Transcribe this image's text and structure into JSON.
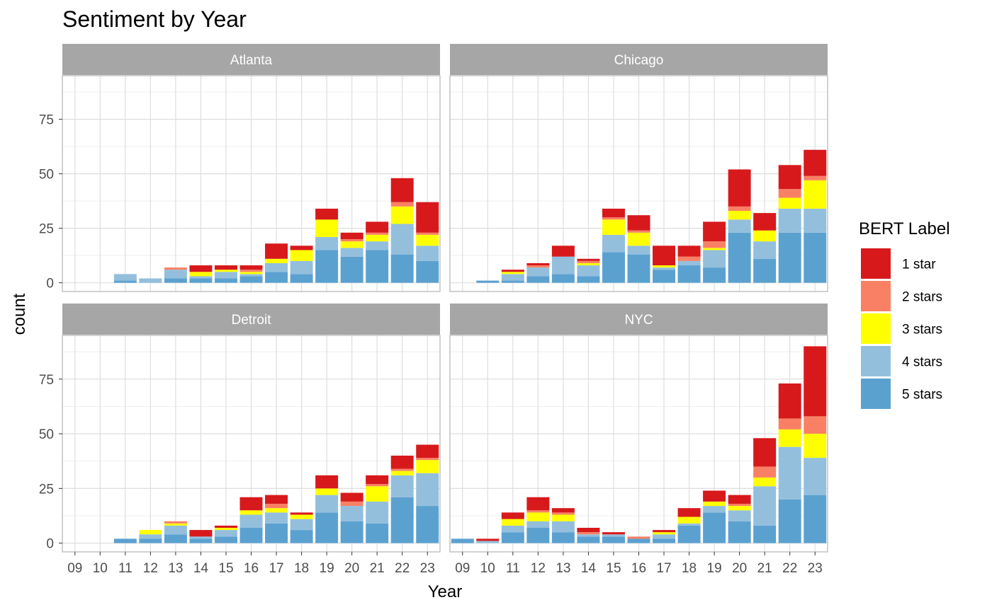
{
  "chart_data": {
    "type": "bar",
    "stacked": true,
    "title": "Sentiment by Year",
    "xlabel": "Year",
    "ylabel": "count",
    "ylim": [
      -4,
      95
    ],
    "yticks": [
      0,
      25,
      50,
      75
    ],
    "grid": true,
    "legend_position": "right",
    "legend_title": "BERT Label",
    "categories": [
      "09",
      "10",
      "11",
      "12",
      "13",
      "14",
      "15",
      "16",
      "17",
      "18",
      "19",
      "20",
      "21",
      "22",
      "23"
    ],
    "series": [
      {
        "name": "5 stars",
        "color": "#5BA1D0"
      },
      {
        "name": "4 stars",
        "color": "#93BFDD"
      },
      {
        "name": "3 stars",
        "color": "#FFFF00"
      },
      {
        "name": "2 stars",
        "color": "#FA8065"
      },
      {
        "name": "1 star",
        "color": "#D7191C"
      }
    ],
    "legend_order": [
      "1 star",
      "2 stars",
      "3 stars",
      "4 stars",
      "5 stars"
    ],
    "facets": [
      {
        "name": "Atlanta",
        "values": {
          "5 stars": [
            0,
            0,
            1,
            0,
            2,
            2,
            2,
            3,
            5,
            4,
            15,
            12,
            15,
            13,
            10
          ],
          "4 stars": [
            0,
            0,
            3,
            2,
            4,
            1,
            3,
            1,
            4,
            6,
            6,
            4,
            4,
            14,
            7
          ],
          "3 stars": [
            0,
            0,
            0,
            0,
            0,
            2,
            1,
            1,
            2,
            5,
            8,
            3,
            3,
            8,
            5
          ],
          "2 stars": [
            0,
            0,
            0,
            0,
            1,
            0,
            0,
            1,
            0,
            0,
            0,
            1,
            1,
            2,
            1
          ],
          "1 star": [
            0,
            0,
            0,
            0,
            0,
            3,
            2,
            2,
            7,
            2,
            5,
            3,
            5,
            11,
            14
          ]
        }
      },
      {
        "name": "Chicago",
        "values": {
          "5 stars": [
            0,
            1,
            1,
            3,
            4,
            3,
            14,
            13,
            6,
            8,
            7,
            23,
            11,
            23,
            23
          ],
          "4 stars": [
            0,
            0,
            3,
            4,
            8,
            5,
            8,
            4,
            1,
            2,
            8,
            6,
            8,
            11,
            11
          ],
          "3 stars": [
            0,
            0,
            1,
            0,
            0,
            1,
            7,
            6,
            1,
            0,
            1,
            4,
            5,
            5,
            13
          ],
          "2 stars": [
            0,
            0,
            0,
            1,
            0,
            1,
            1,
            1,
            0,
            2,
            3,
            2,
            0,
            4,
            2
          ],
          "1 star": [
            0,
            0,
            1,
            1,
            5,
            1,
            4,
            7,
            9,
            5,
            9,
            17,
            8,
            11,
            12
          ]
        }
      },
      {
        "name": "Detroit",
        "values": {
          "5 stars": [
            0,
            0,
            2,
            2,
            4,
            2,
            3,
            7,
            9,
            6,
            14,
            10,
            9,
            21,
            17
          ],
          "4 stars": [
            0,
            0,
            0,
            2,
            4,
            1,
            3,
            6,
            5,
            5,
            8,
            7,
            10,
            10,
            15
          ],
          "3 stars": [
            0,
            0,
            0,
            2,
            1,
            0,
            1,
            2,
            2,
            2,
            3,
            0,
            7,
            2,
            6
          ],
          "2 stars": [
            0,
            0,
            0,
            0,
            1,
            0,
            0,
            0,
            2,
            0,
            0,
            2,
            1,
            1,
            1
          ],
          "1 star": [
            0,
            0,
            0,
            0,
            0,
            3,
            1,
            6,
            4,
            1,
            6,
            4,
            4,
            6,
            6
          ]
        }
      },
      {
        "name": "NYC",
        "values": {
          "5 stars": [
            2,
            0,
            5,
            7,
            5,
            3,
            3,
            2,
            2,
            8,
            14,
            10,
            8,
            20,
            22
          ],
          "4 stars": [
            0,
            1,
            3,
            3,
            5,
            1,
            1,
            0,
            2,
            1,
            3,
            5,
            18,
            24,
            17
          ],
          "3 stars": [
            0,
            0,
            3,
            4,
            3,
            0,
            0,
            0,
            1,
            3,
            2,
            2,
            4,
            8,
            11
          ],
          "2 stars": [
            0,
            0,
            0,
            1,
            1,
            1,
            0,
            1,
            0,
            0,
            0,
            1,
            5,
            5,
            8
          ],
          "1 star": [
            0,
            1,
            3,
            6,
            2,
            2,
            1,
            0,
            1,
            4,
            5,
            4,
            13,
            16,
            32
          ]
        }
      }
    ]
  },
  "colors": {
    "strip_background": "#A6A6A6",
    "strip_text": "#ffffff",
    "panel_border": "#B3B3B3",
    "grid_major": "#DEDEDE",
    "grid_minor": "#EFEFEF",
    "axis_text": "#4D4D4D",
    "title_text": "#000000"
  }
}
